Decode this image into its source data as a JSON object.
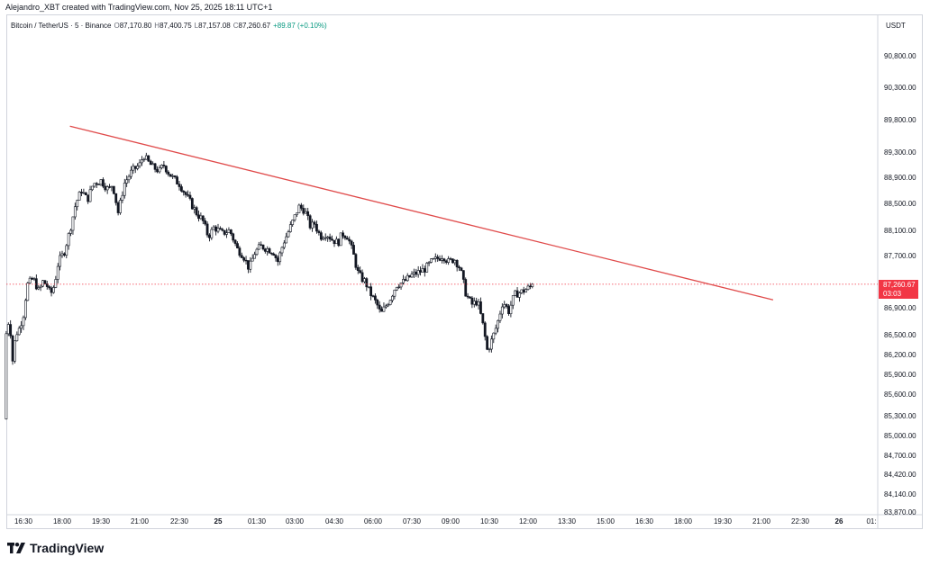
{
  "header": {
    "credit": "Alejandro_XBT created with TradingView.com, Nov 25, 2025 18:11 UTC+1"
  },
  "legend": {
    "symbol": "Bitcoin / TetherUS · 5 · Binance",
    "open_label": "O",
    "open": "87,170.80",
    "high_label": "H",
    "high": "87,400.75",
    "low_label": "L",
    "low": "87,157.08",
    "close_label": "C",
    "close": "87,260.67",
    "change": "+89.87 (+0.10%)"
  },
  "price_axis": {
    "currency": "USDT"
  },
  "last_price": {
    "value": "87,260.67",
    "countdown": "03:03",
    "color": "#f23645"
  },
  "brand": {
    "name": "TradingView"
  },
  "colors": {
    "candle": "#131722",
    "trendline": "#e04b4b",
    "price_line": "#f23645",
    "axis_border": "#d1d4dc"
  },
  "chart_data": {
    "type": "candlestick",
    "symbol": "BTC/USDT",
    "interval": "5",
    "exchange": "Binance",
    "y_ticks": [
      "90,800.00",
      "90,300.00",
      "89,800.00",
      "89,300.00",
      "88,900.00",
      "88,500.00",
      "88,100.00",
      "87,700.00",
      "86,900.00",
      "86,500.00",
      "86,200.00",
      "85,900.00",
      "85,600.00",
      "85,300.00",
      "85,000.00",
      "84,700.00",
      "84,420.00",
      "84,140.00",
      "83,870.00"
    ],
    "y_tick_values": [
      90800,
      90300,
      89800,
      89300,
      88900,
      88500,
      88100,
      87700,
      86900,
      86500,
      86200,
      85900,
      85600,
      85300,
      85000,
      84700,
      84420,
      84140,
      83870
    ],
    "x_ticks": [
      {
        "label": "16:30",
        "t": 0
      },
      {
        "label": "18:00",
        "t": 1
      },
      {
        "label": "19:30",
        "t": 2
      },
      {
        "label": "21:00",
        "t": 3
      },
      {
        "label": "22:30",
        "t": 4
      },
      {
        "label": "25",
        "t": 5,
        "bold": true
      },
      {
        "label": "01:30",
        "t": 6
      },
      {
        "label": "03:00",
        "t": 7
      },
      {
        "label": "04:30",
        "t": 8
      },
      {
        "label": "06:00",
        "t": 9
      },
      {
        "label": "07:30",
        "t": 10
      },
      {
        "label": "09:00",
        "t": 11
      },
      {
        "label": "10:30",
        "t": 12
      },
      {
        "label": "12:00",
        "t": 13
      },
      {
        "label": "13:30",
        "t": 14
      },
      {
        "label": "15:00",
        "t": 15
      },
      {
        "label": "16:30",
        "t": 16
      },
      {
        "label": "18:00",
        "t": 17
      },
      {
        "label": "19:30",
        "t": 18
      },
      {
        "label": "21:00",
        "t": 19
      },
      {
        "label": "22:30",
        "t": 20
      },
      {
        "label": "26",
        "t": 21,
        "bold": true
      },
      {
        "label": "01:",
        "t": 22
      }
    ],
    "path_points": [
      [
        -0.5,
        85250
      ],
      [
        -0.45,
        86500
      ],
      [
        -0.35,
        86800
      ],
      [
        -0.3,
        86000
      ],
      [
        -0.2,
        86500
      ],
      [
        -0.1,
        86600
      ],
      [
        0,
        86800
      ],
      [
        0.1,
        87250
      ],
      [
        0.25,
        87350
      ],
      [
        0.4,
        87150
      ],
      [
        0.5,
        87300
      ],
      [
        0.6,
        87250
      ],
      [
        0.7,
        87100
      ],
      [
        0.8,
        87250
      ],
      [
        0.9,
        87600
      ],
      [
        1.05,
        87750
      ],
      [
        1.2,
        88100
      ],
      [
        1.35,
        88500
      ],
      [
        1.5,
        88700
      ],
      [
        1.65,
        88550
      ],
      [
        1.8,
        88800
      ],
      [
        2.0,
        88850
      ],
      [
        2.2,
        88700
      ],
      [
        2.3,
        88800
      ],
      [
        2.45,
        88350
      ],
      [
        2.6,
        88800
      ],
      [
        2.8,
        89000
      ],
      [
        3.0,
        89100
      ],
      [
        3.1,
        89250
      ],
      [
        3.2,
        89150
      ],
      [
        3.35,
        89050
      ],
      [
        3.5,
        89000
      ],
      [
        3.6,
        89100
      ],
      [
        3.75,
        88950
      ],
      [
        3.9,
        88850
      ],
      [
        4.0,
        88800
      ],
      [
        4.15,
        88650
      ],
      [
        4.3,
        88500
      ],
      [
        4.45,
        88350
      ],
      [
        4.6,
        88250
      ],
      [
        4.75,
        88000
      ],
      [
        4.9,
        88150
      ],
      [
        5.1,
        88050
      ],
      [
        5.3,
        88100
      ],
      [
        5.5,
        87800
      ],
      [
        5.65,
        87700
      ],
      [
        5.8,
        87500
      ],
      [
        5.95,
        87750
      ],
      [
        6.1,
        87850
      ],
      [
        6.3,
        87800
      ],
      [
        6.45,
        87750
      ],
      [
        6.55,
        87600
      ],
      [
        6.7,
        87900
      ],
      [
        6.85,
        88100
      ],
      [
        7.0,
        88300
      ],
      [
        7.1,
        88450
      ],
      [
        7.25,
        88400
      ],
      [
        7.4,
        88150
      ],
      [
        7.5,
        88200
      ],
      [
        7.65,
        88000
      ],
      [
        7.8,
        88050
      ],
      [
        7.95,
        87950
      ],
      [
        8.1,
        87900
      ],
      [
        8.2,
        88050
      ],
      [
        8.35,
        88000
      ],
      [
        8.5,
        87700
      ],
      [
        8.6,
        87450
      ],
      [
        8.7,
        87350
      ],
      [
        8.8,
        87300
      ],
      [
        8.9,
        87150
      ],
      [
        9.0,
        87050
      ],
      [
        9.1,
        86950
      ],
      [
        9.2,
        86800
      ],
      [
        9.3,
        86900
      ],
      [
        9.45,
        87050
      ],
      [
        9.6,
        87250
      ],
      [
        9.8,
        87300
      ],
      [
        10.0,
        87400
      ],
      [
        10.2,
        87450
      ],
      [
        10.35,
        87500
      ],
      [
        10.5,
        87600
      ],
      [
        10.65,
        87650
      ],
      [
        10.8,
        87700
      ],
      [
        10.95,
        87600
      ],
      [
        11.1,
        87650
      ],
      [
        11.25,
        87500
      ],
      [
        11.4,
        87100
      ],
      [
        11.55,
        86950
      ],
      [
        11.7,
        87000
      ],
      [
        11.85,
        86600
      ],
      [
        11.95,
        86250
      ],
      [
        12.05,
        86400
      ],
      [
        12.2,
        86650
      ],
      [
        12.35,
        87000
      ],
      [
        12.5,
        86850
      ],
      [
        12.65,
        87100
      ],
      [
        12.85,
        87150
      ],
      [
        13.0,
        87200
      ],
      [
        13.15,
        87250
      ]
    ],
    "last_close": 87260.67,
    "last_close_t": 13.15,
    "trendline": {
      "start": {
        "t": 1.2,
        "price": 89700
      },
      "end": {
        "t": 19.3,
        "price": 87020
      },
      "color": "#e04b4b"
    }
  }
}
